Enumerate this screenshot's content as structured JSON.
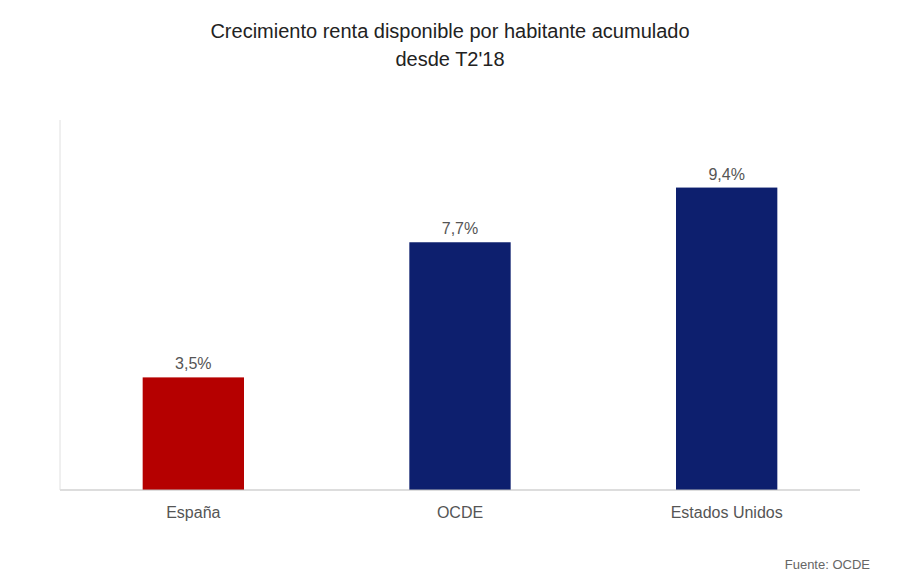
{
  "chart_data": {
    "type": "bar",
    "title": "Crecimiento renta disponible por habitante acumulado\ndesde T2'18",
    "categories": [
      "España",
      "OCDE",
      "Estados Unidos"
    ],
    "values": [
      3.5,
      7.7,
      9.4
    ],
    "value_labels": [
      "3,5%",
      "7,7%",
      "9,4%"
    ],
    "colors": [
      "#b50000",
      "#0d1f6e",
      "#0d1f6e"
    ],
    "data_labels": true,
    "ylim": [
      0,
      11.5
    ],
    "grid": false,
    "tick_labels": "x",
    "source": "Fuente: OCDE"
  }
}
